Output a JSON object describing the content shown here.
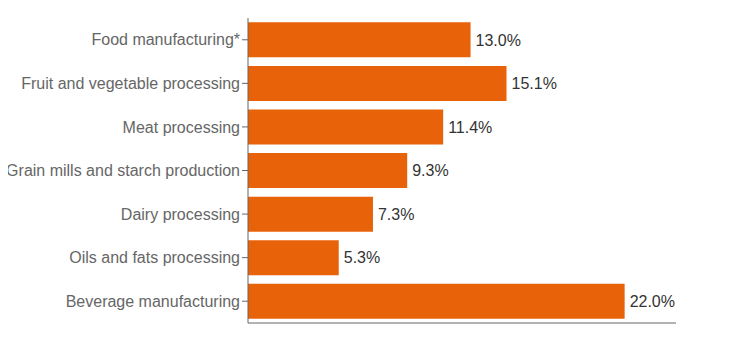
{
  "chart_data": {
    "type": "bar",
    "orientation": "horizontal",
    "categories": [
      "Food manufacturing*",
      "Fruit and vegetable processing",
      "Meat processing",
      "Grain mills and starch production",
      "Dairy processing",
      "Oils and fats processing",
      "Beverage manufacturing"
    ],
    "values": [
      13.0,
      15.1,
      11.4,
      9.3,
      7.3,
      5.3,
      22.0
    ],
    "value_labels": [
      "13.0%",
      "15.1%",
      "11.4%",
      "9.3%",
      "7.3%",
      "5.3%",
      "22.0%"
    ],
    "data_labels": true,
    "color": "#E8620A",
    "xlim": [
      0,
      25
    ],
    "grid": false,
    "tick_labels": "y"
  }
}
